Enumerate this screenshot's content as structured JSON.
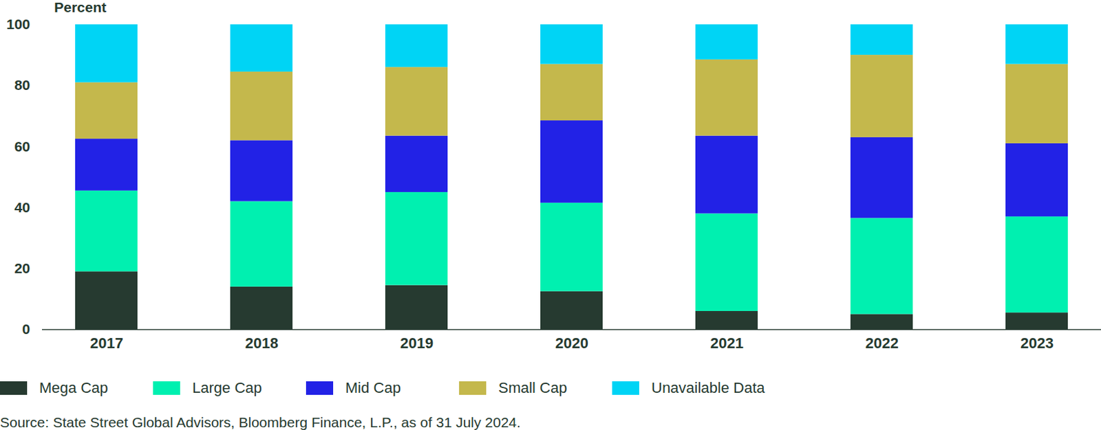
{
  "chart_data": {
    "type": "bar",
    "stacked": true,
    "y_label": "Percent",
    "categories": [
      "2017",
      "2018",
      "2019",
      "2020",
      "2021",
      "2022",
      "2023"
    ],
    "series": [
      {
        "name": "Mega Cap",
        "color": "#263a30",
        "values": [
          19,
          14,
          14.5,
          12.5,
          6,
          5,
          5.5
        ]
      },
      {
        "name": "Large Cap",
        "color": "#00f0b0",
        "values": [
          26.5,
          28,
          30.5,
          29,
          32,
          31.5,
          31.5
        ]
      },
      {
        "name": "Mid Cap",
        "color": "#2222e6",
        "values": [
          17,
          20,
          18.5,
          27,
          25.5,
          26.5,
          24
        ]
      },
      {
        "name": "Small Cap",
        "color": "#c4b84c",
        "values": [
          18.5,
          22.5,
          22.5,
          18.5,
          25,
          27,
          26
        ]
      },
      {
        "name": "Unavailable Data",
        "color": "#00d4f5",
        "values": [
          19,
          15.5,
          14,
          13,
          11.5,
          10,
          13
        ]
      }
    ],
    "ylim": [
      0,
      100
    ],
    "yticks": [
      0,
      20,
      40,
      60,
      80,
      100
    ],
    "grid": false,
    "legend": "bottom-left",
    "caption": "Source: State Street Global Advisors, Bloomberg Finance, L.P., as of 31 July 2024."
  }
}
